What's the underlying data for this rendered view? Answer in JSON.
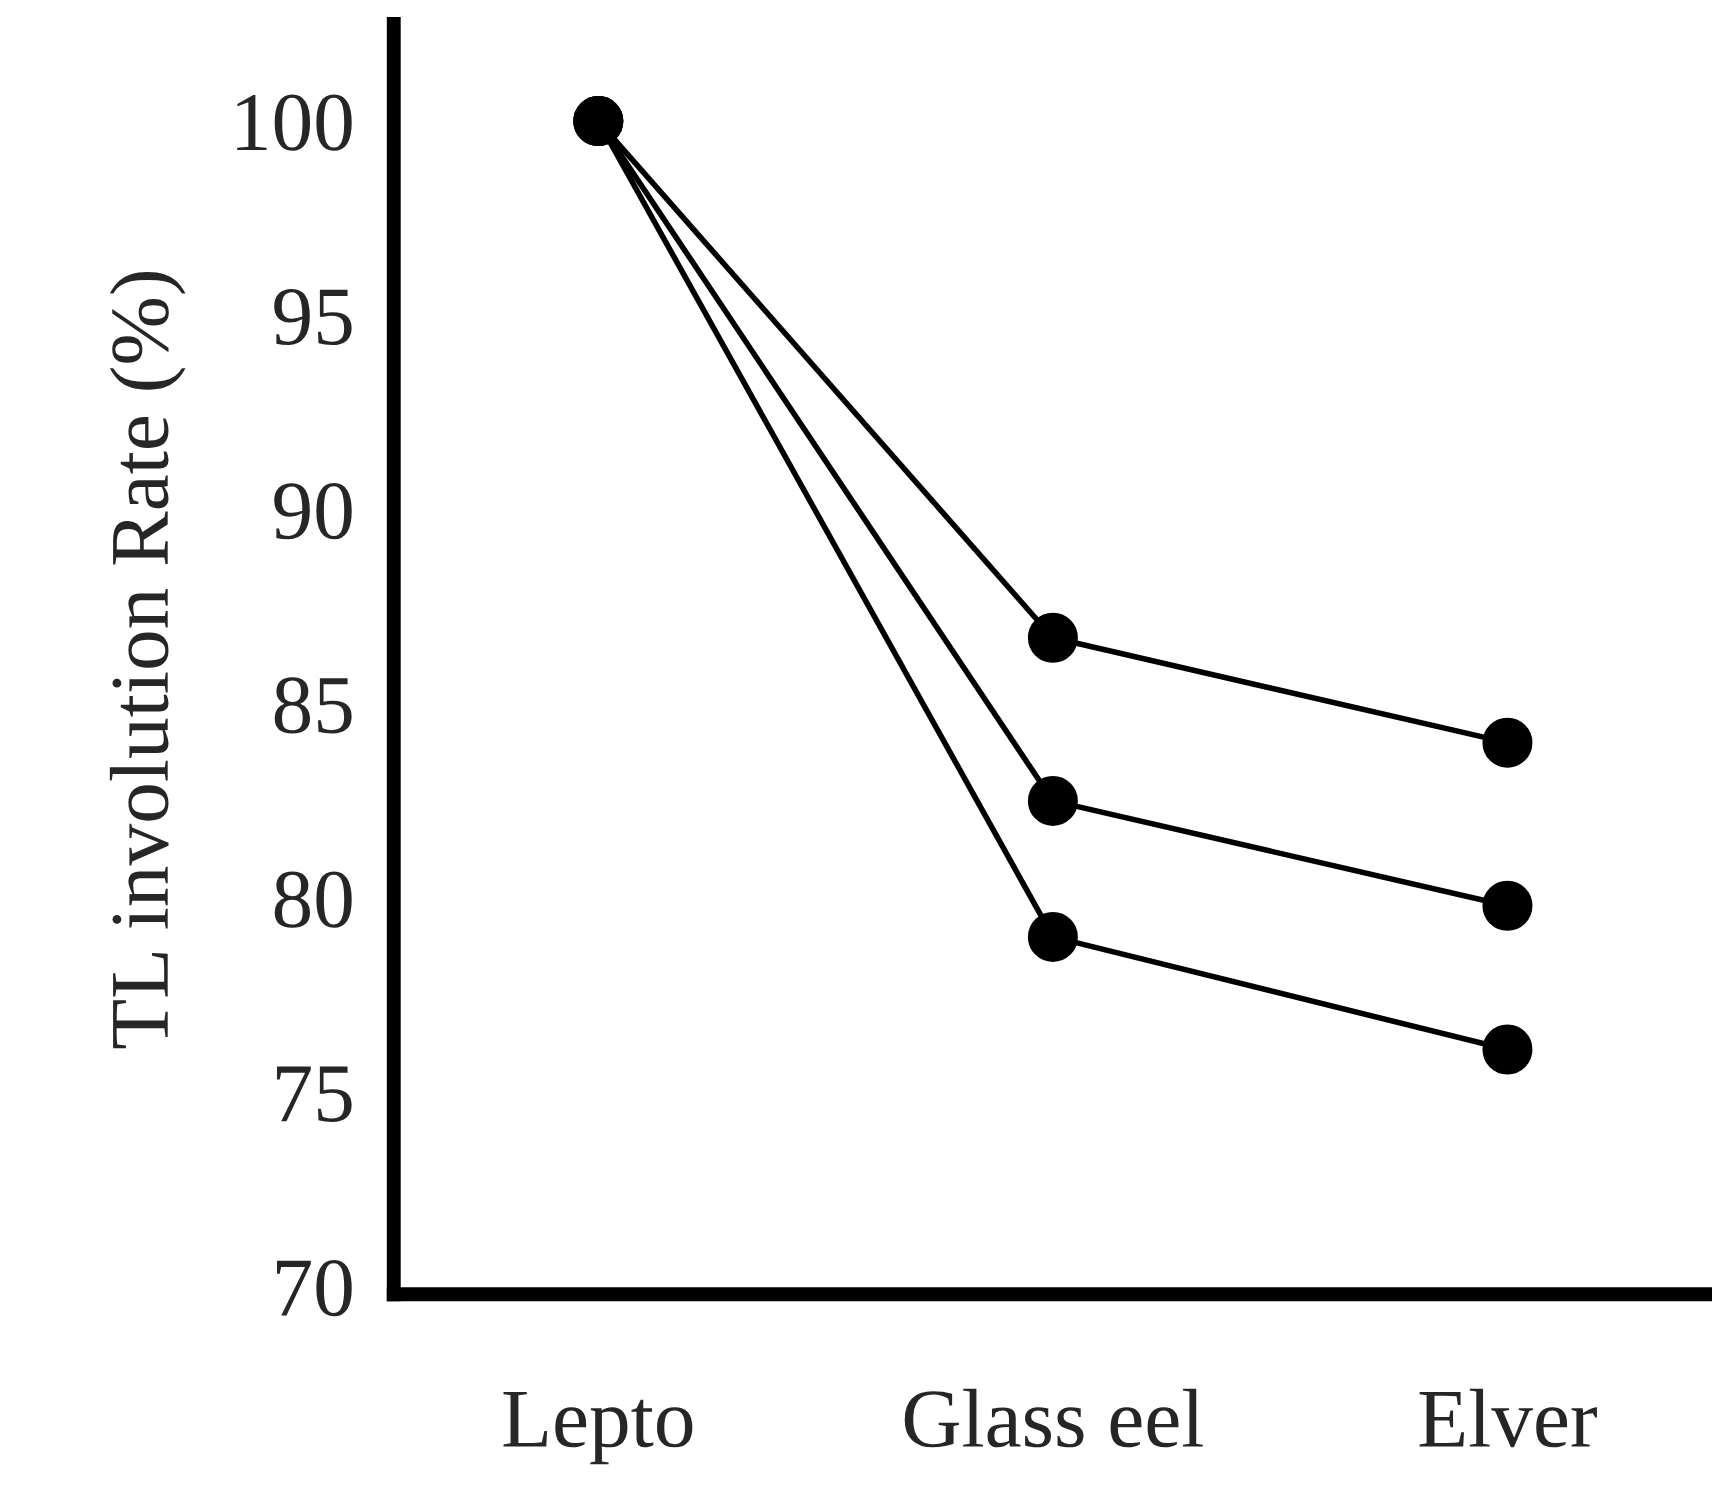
{
  "chart_data": {
    "type": "line",
    "ylabel": "TL involution Rate (%)",
    "categories": [
      "Lepto",
      "Glass eel",
      "Elver"
    ],
    "series": [
      {
        "color": "#000000",
        "values": [
          100,
          86.7,
          84.0
        ]
      },
      {
        "color": "#000000",
        "values": [
          100,
          82.5,
          79.8
        ]
      },
      {
        "color": "#000000",
        "values": [
          100,
          79.0,
          76.1
        ]
      }
    ],
    "ylim": [
      69.8,
      102.5
    ],
    "yticks": [
      70,
      75,
      80,
      85,
      90,
      95,
      100
    ],
    "marker": "circle",
    "line_style": "solid",
    "grid": false,
    "legend": false
  }
}
